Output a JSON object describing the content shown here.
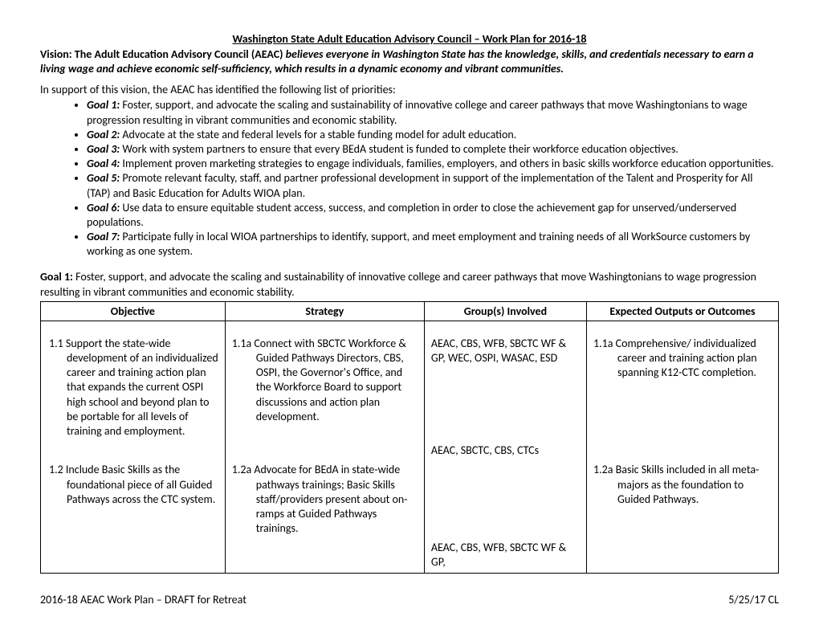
{
  "title": "Washington State Adult Education Advisory Council – Work Plan for 2016-18",
  "vision_label": "Vision: The Adult Education Advisory Council (AEAC) ",
  "vision_text": "believes everyone in Washington State has the knowledge, skills, and credentials necessary to earn a living wage and achieve economic self-sufficiency, which results in a dynamic economy and vibrant communities.",
  "intro": "In support of this vision, the AEAC has identified the following list of priorities:",
  "goals": [
    {
      "label": "Goal 1:",
      "text": "  Foster, support, and advocate the scaling and sustainability of innovative college and career pathways that move Washingtonians to wage progression resulting in vibrant communities and economic stability."
    },
    {
      "label": "Goal 2:",
      "text": "  Advocate at the state and federal levels for a stable funding model for adult education."
    },
    {
      "label": "Goal 3:",
      "text": "  Work with system partners to ensure that every BEdA student is funded to complete their workforce education objectives."
    },
    {
      "label": "Goal 4:",
      "text": "  Implement proven marketing strategies to engage individuals, families, employers, and others in basic skills workforce education opportunities."
    },
    {
      "label": "Goal 5:",
      "text": "  Promote relevant faculty, staff, and partner professional development in support of the implementation of the Talent and Prosperity for All (TAP) and Basic Education for Adults WIOA plan."
    },
    {
      "label": "Goal 6:",
      "text": "  Use data to ensure equitable student access, success, and completion in order to close the achievement gap for unserved/underserved populations."
    },
    {
      "label": "Goal 7:",
      "text": "  Participate fully in local WIOA partnerships to identify, support, and meet employment and training needs of all WorkSource customers by working as one system."
    }
  ],
  "goal1_restate_label": "Goal 1:",
  "goal1_restate_text": "  Foster, support, and advocate the scaling and sustainability of innovative college and career pathways that move Washingtonians to wage progression resulting in vibrant communities and economic stability.",
  "headers": {
    "col1": "Objective",
    "col2": "Strategy",
    "col3": "Group(s) Involved",
    "col4": "Expected Outputs or Outcomes"
  },
  "rows": [
    {
      "obj": "1.1 Support the state-wide development of an individualized career and training action plan that expands the current OSPI high school and beyond plan to be portable for all levels of training and employment.",
      "strat": "1.1a Connect with SBCTC Workforce & Guided Pathways Directors, CBS, OSPI, the Governor's Office, and the Workforce Board to support discussions and action plan development.",
      "grp": "AEAC, CBS, WFB, SBCTC WF & GP, WEC, OSPI, WASAC, ESD",
      "out": "1.1a Comprehensive/ individualized career and training action plan spanning K12-CTC completion."
    },
    {
      "obj": "",
      "strat": "",
      "grp": "AEAC, SBCTC, CBS, CTCs",
      "out": ""
    },
    {
      "obj": "1.2 Include Basic Skills as the foundational piece of all Guided Pathways across the CTC system.",
      "strat": "1.2a Advocate for BEdA in state-wide pathways trainings; Basic Skills staff/providers present about on-ramps at Guided Pathways trainings.",
      "grp": "",
      "out": "1.2a Basic Skills included in all meta-majors as the foundation to Guided Pathways."
    },
    {
      "obj": "",
      "strat": "",
      "grp": "AEAC, CBS, WFB, SBCTC WF & GP,",
      "out": ""
    }
  ],
  "footer_left": "2016-18 AEAC Work Plan – DRAFT for Retreat",
  "footer_right": "5/25/17 CL"
}
